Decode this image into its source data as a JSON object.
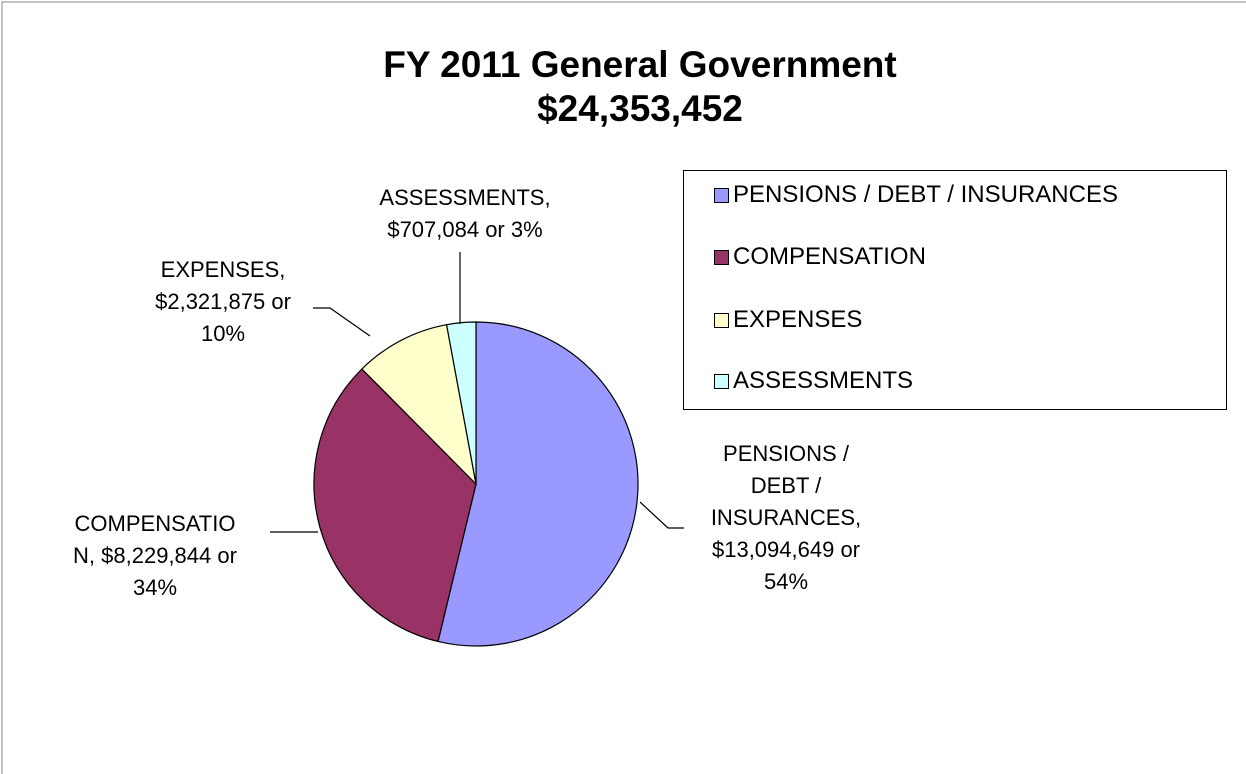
{
  "chart_data": {
    "type": "pie",
    "title": "FY 2011 General Government",
    "subtitle": "$24,353,452",
    "categories": [
      "PENSIONS / DEBT / INSURANCES",
      "COMPENSATION",
      "EXPENSES",
      "ASSESSMENTS"
    ],
    "values": [
      13094649,
      8229844,
      2321875,
      707084
    ],
    "value_labels": [
      "PENSIONS /\nDEBT /\nINSURANCES,\n$13,094,649 or\n54%",
      "COMPENSATIO\nN,  $8,229,844 or\n34%",
      "EXPENSES,\n$2,321,875 or\n10%",
      "ASSESSMENTS,\n$707,084 or 3%"
    ],
    "colors": [
      "#9999ff",
      "#993366",
      "#ffffcc",
      "#ccffff"
    ],
    "legend": "right"
  }
}
